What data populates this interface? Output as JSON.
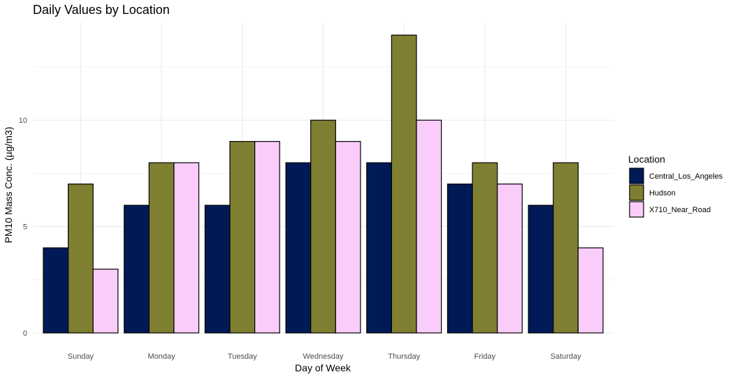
{
  "chart_data": {
    "type": "bar",
    "title": "Daily Values by Location",
    "xlabel": "Day of Week",
    "ylabel": "PM10 Mass Conc. (µg/m3)",
    "categories": [
      "Sunday",
      "Monday",
      "Tuesday",
      "Wednesday",
      "Thursday",
      "Friday",
      "Saturday"
    ],
    "series": [
      {
        "name": "Central_Los_Angeles",
        "color": "#001a57",
        "values": [
          4,
          6,
          6,
          8,
          8,
          7,
          6
        ]
      },
      {
        "name": "Hudson",
        "color": "#7f7f32",
        "values": [
          7,
          8,
          9,
          10,
          14,
          8,
          8
        ]
      },
      {
        "name": "X710_Near_Road",
        "color": "#f9ccf9",
        "values": [
          3,
          8,
          9,
          9,
          10,
          7,
          4
        ]
      }
    ],
    "ylim": [
      0,
      14.6
    ],
    "y_ticks": [
      0,
      5,
      10
    ],
    "grid": true,
    "legend": {
      "title": "Location",
      "position": "right"
    }
  }
}
